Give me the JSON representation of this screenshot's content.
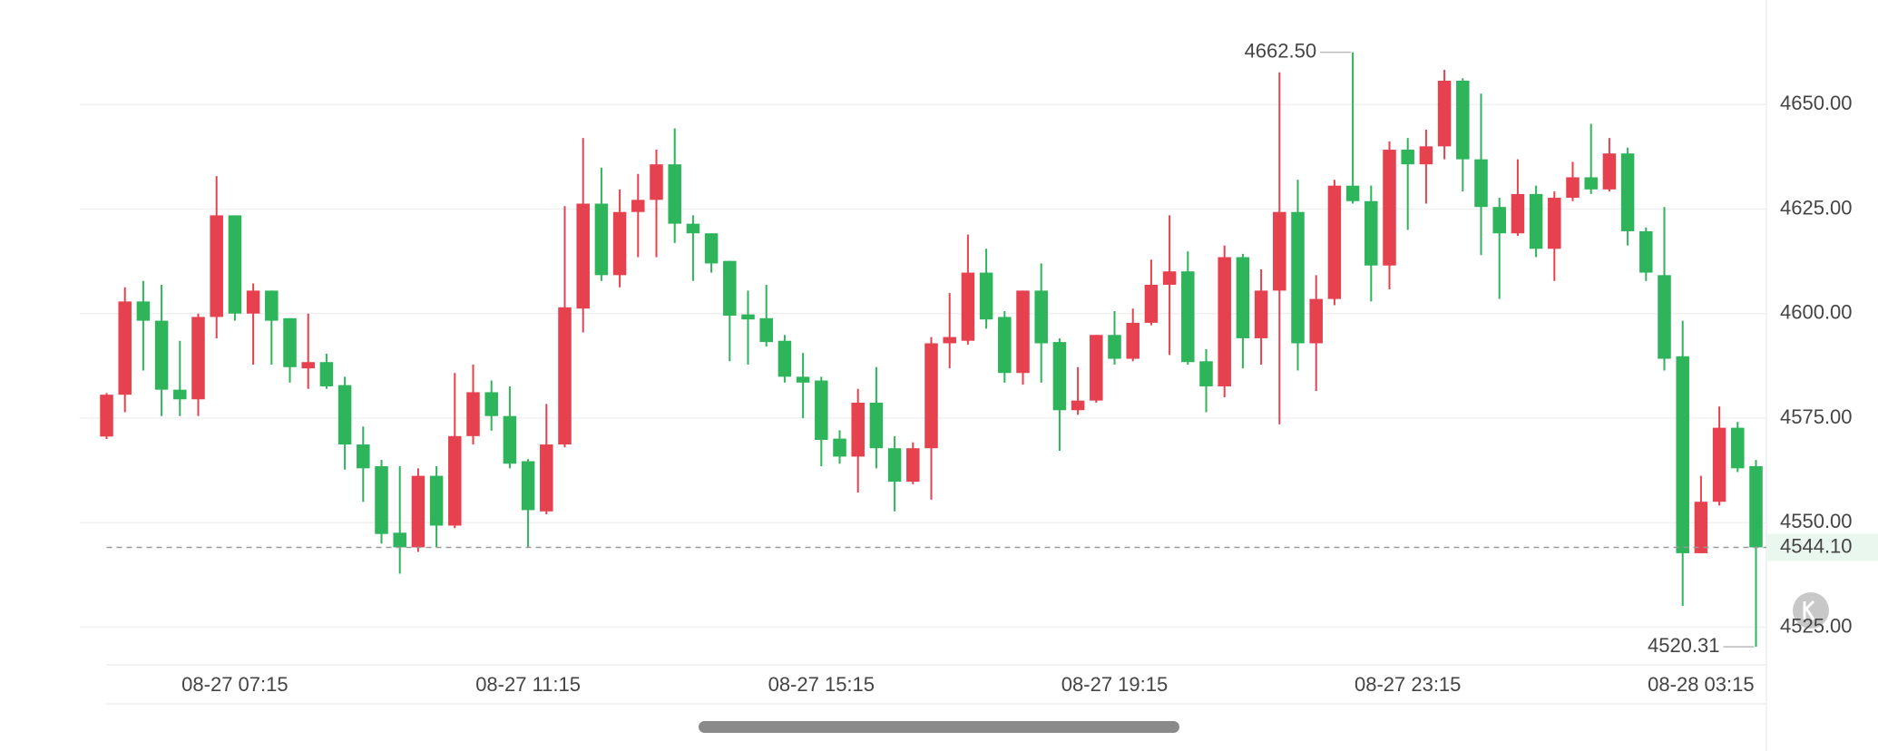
{
  "chart_data": {
    "type": "candlestick",
    "categories": [
      null,
      null,
      null,
      null,
      null,
      null,
      null,
      "08-27 07:15",
      null,
      null,
      null,
      null,
      null,
      null,
      null,
      null,
      null,
      null,
      null,
      null,
      null,
      null,
      null,
      "08-27 11:15",
      null,
      null,
      null,
      null,
      null,
      null,
      null,
      null,
      null,
      null,
      null,
      null,
      null,
      null,
      null,
      "08-27 15:15",
      null,
      null,
      null,
      null,
      null,
      null,
      null,
      null,
      null,
      null,
      null,
      null,
      null,
      null,
      null,
      "08-27 19:15",
      null,
      null,
      null,
      null,
      null,
      null,
      null,
      null,
      null,
      null,
      null,
      null,
      null,
      null,
      null,
      "08-27 23:15",
      null,
      null,
      null,
      null,
      null,
      null,
      null,
      null,
      null,
      null,
      null,
      null,
      null,
      null,
      null,
      "08-28 03:15",
      null,
      null,
      null
    ],
    "open": [
      4570.6,
      4580.6,
      4602.9,
      4598.3,
      4581.8,
      4579.5,
      4599.2,
      4623.5,
      4600,
      4605.5,
      4598.9,
      4586.9,
      4588.4,
      4582.9,
      4568.7,
      4563.5,
      4547.6,
      4544.1,
      4561.2,
      4549.3,
      4570.7,
      4581.2,
      4575.5,
      4564.7,
      4552.7,
      4568.7,
      4601.2,
      4626.3,
      4609.2,
      4624.3,
      4627.2,
      4635.7,
      4621.5,
      4619.2,
      4612.6,
      4599.8,
      4598.9,
      4593.5,
      4584.9,
      4584,
      4570.1,
      4565.8,
      4578.7,
      4567.8,
      4559.8,
      4567.8,
      4592.9,
      4593.5,
      4609.8,
      4599.2,
      4585.8,
      4605.5,
      4593.2,
      4576.9,
      4579.2,
      4594.9,
      4589.2,
      4597.8,
      4606.9,
      4610.1,
      4588.6,
      4582.6,
      4613.5,
      4594.1,
      4605.5,
      4624.3,
      4592.9,
      4603.5,
      4630.6,
      4626.9,
      4611.5,
      4639.2,
      4635.7,
      4640,
      4655.7,
      4636.9,
      4625.5,
      4619.2,
      4628.6,
      4615.5,
      4627.7,
      4632.6,
      4629.7,
      4638.3,
      4619.7,
      4609.2,
      4589.8,
      4542.7,
      4555,
      4572.7,
      4563.5
    ],
    "high": [
      4581,
      4606.3,
      4607.8,
      4606.9,
      4593.5,
      4600,
      4632.9,
      4623.5,
      4607.2,
      4605.5,
      4598.9,
      4600,
      4590.4,
      4584.9,
      4573,
      4565,
      4563.5,
      4563,
      4563.5,
      4585.8,
      4587.8,
      4584,
      4582.6,
      4565.2,
      4578.4,
      4625.7,
      4642,
      4634.9,
      4629.7,
      4633.4,
      4639.2,
      4644.3,
      4623.5,
      4619.2,
      4612.6,
      4605.5,
      4606.9,
      4594.9,
      4590.6,
      4584.9,
      4572.1,
      4582,
      4587.2,
      4570.7,
      4569.2,
      4594.4,
      4604.9,
      4618.9,
      4615.5,
      4600.6,
      4605.5,
      4612,
      4594.1,
      4587.2,
      4594.9,
      4600.6,
      4601.2,
      4612.9,
      4623.5,
      4614.9,
      4591.5,
      4616.3,
      4614.3,
      4610.6,
      4657.7,
      4632,
      4609.2,
      4632,
      4662.5,
      4630.6,
      4641.2,
      4642,
      4644,
      4658.3,
      4656.3,
      4652.6,
      4627.7,
      4636.9,
      4630.6,
      4629.2,
      4636.3,
      4645.4,
      4642,
      4639.7,
      4620.6,
      4625.5,
      4598.3,
      4561.2,
      4577.8,
      4574.1,
      4565
    ],
    "low": [
      4570,
      4576.4,
      4586.4,
      4575.5,
      4575.5,
      4575.5,
      4594.1,
      4598.3,
      4587.8,
      4587.8,
      4583.5,
      4582,
      4582,
      4562.7,
      4555,
      4545,
      4537.8,
      4543,
      4544.1,
      4548.7,
      4568.7,
      4572,
      4563,
      4544.1,
      4552,
      4568,
      4595.5,
      4607.8,
      4606.3,
      4613.5,
      4613.5,
      4616.9,
      4607.8,
      4609.8,
      4588.6,
      4587.8,
      4592.1,
      4583.5,
      4575,
      4563.5,
      4564.1,
      4557.2,
      4563,
      4552.7,
      4559.2,
      4555.5,
      4586.9,
      4592.6,
      4596.4,
      4583.5,
      4583,
      4583.5,
      4567.2,
      4575.8,
      4578.7,
      4587.8,
      4588.6,
      4597.2,
      4590.1,
      4587.8,
      4576.4,
      4580,
      4586.9,
      4587.8,
      4573.5,
      4586.4,
      4581.5,
      4602,
      4626.3,
      4602.9,
      4605.8,
      4620,
      4626.3,
      4636.9,
      4629.2,
      4614,
      4603.5,
      4618.6,
      4613.5,
      4607.8,
      4626.9,
      4628.6,
      4629.2,
      4616.3,
      4607.8,
      4586.4,
      4530.1,
      4542.7,
      4554.1,
      4562.1,
      4520.31
    ],
    "close": [
      4580.6,
      4602.9,
      4598.3,
      4581.8,
      4579.5,
      4599.2,
      4623.5,
      4600,
      4605.5,
      4598.3,
      4587.2,
      4588.4,
      4582.6,
      4568.7,
      4563,
      4547.3,
      4544.1,
      4561.2,
      4549.3,
      4570.7,
      4581.2,
      4575.5,
      4564.1,
      4553,
      4568.7,
      4601.5,
      4626.3,
      4609.2,
      4624.3,
      4627.2,
      4635.7,
      4621.5,
      4619.2,
      4612,
      4599.5,
      4598.6,
      4593.2,
      4584.9,
      4583.5,
      4569.8,
      4565.8,
      4578.7,
      4567.8,
      4559.8,
      4567.8,
      4592.9,
      4594.4,
      4609.8,
      4598.6,
      4585.8,
      4605.5,
      4592.9,
      4576.9,
      4579.2,
      4594.9,
      4589.2,
      4597.8,
      4606.9,
      4610.1,
      4588.4,
      4582.6,
      4613.5,
      4594.1,
      4605.5,
      4624.3,
      4592.9,
      4603.5,
      4630.6,
      4626.9,
      4611.5,
      4639.2,
      4635.7,
      4640,
      4655.7,
      4636.9,
      4625.5,
      4619.2,
      4628.6,
      4615.5,
      4627.7,
      4632.6,
      4629.7,
      4638.3,
      4619.7,
      4609.8,
      4589.2,
      4542.7,
      4555,
      4572.7,
      4563,
      4544.1
    ],
    "up_color": "#e5414f",
    "down_color": "#2eb45a",
    "ylim": [
      4516,
      4675
    ],
    "yticks": [
      {
        "value": 4525,
        "label": "4525.00"
      },
      {
        "value": 4550,
        "label": "4550.00"
      },
      {
        "value": 4575,
        "label": "4575.00"
      },
      {
        "value": 4600,
        "label": "4600.00"
      },
      {
        "value": 4625,
        "label": "4625.00"
      },
      {
        "value": 4650,
        "label": "4650.00"
      }
    ],
    "grid": true,
    "max_label": "4662.50",
    "min_label": "4520.31",
    "last_price": 4544.1,
    "last_price_label": "4544.10"
  }
}
